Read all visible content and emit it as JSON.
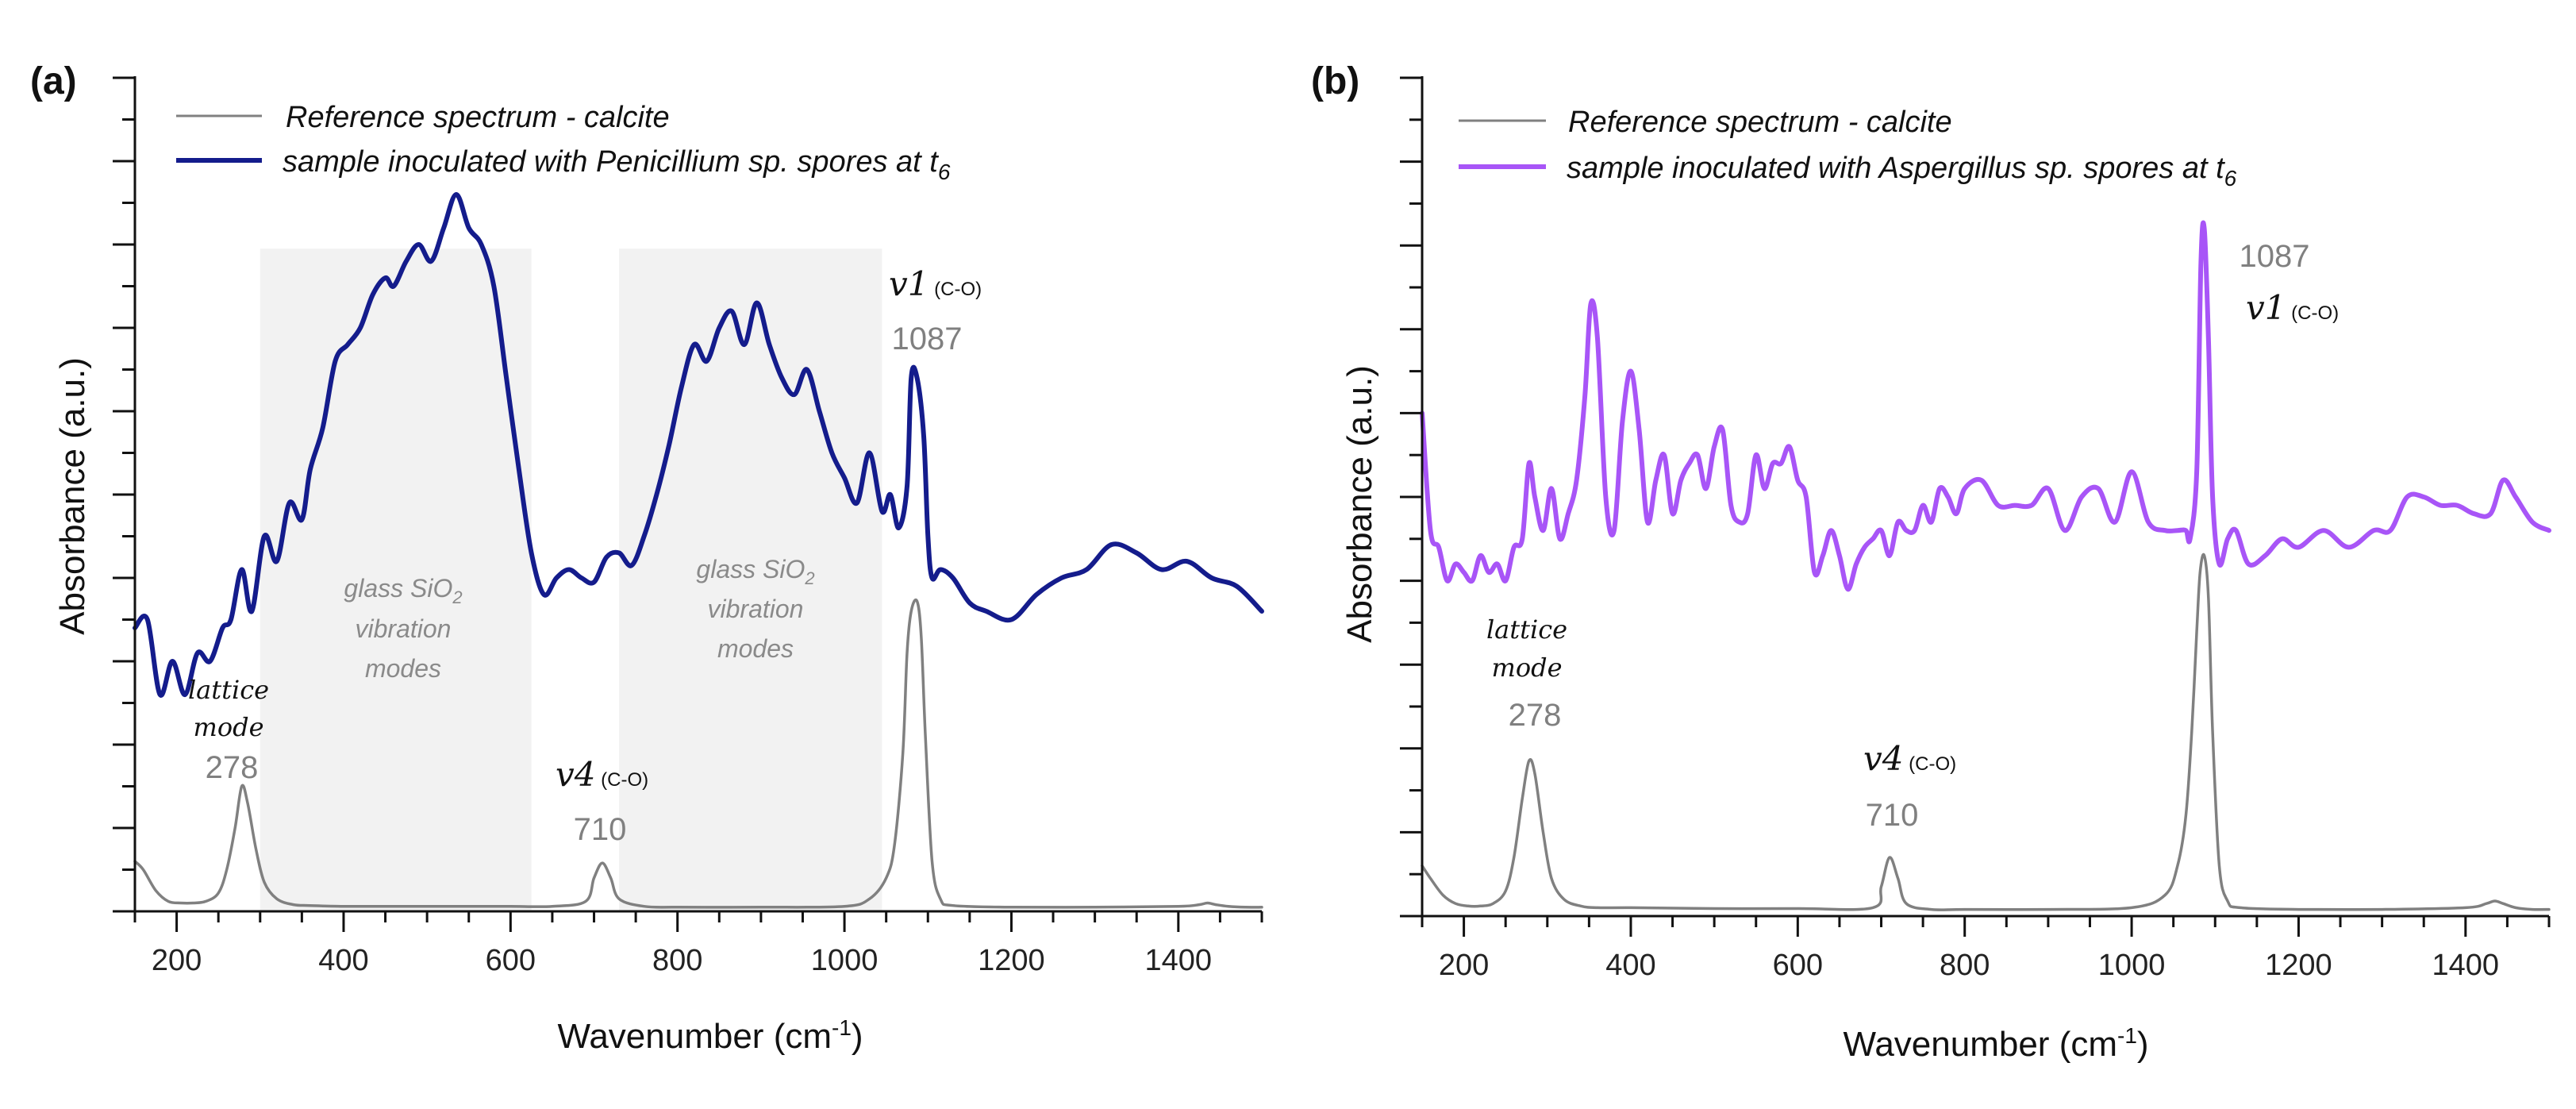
{
  "chart_data": [
    {
      "panel": "(a)",
      "type": "line",
      "xlabel": "Wavenumber (cm",
      "xlabel_sup": "-1",
      "xlabel_close": ")",
      "ylabel": "Absorbance (a.u.)",
      "xlim": [
        150,
        1500
      ],
      "ylim": [
        0,
        10
      ],
      "xticks": [
        200,
        400,
        600,
        800,
        1000,
        1200,
        1400
      ],
      "grid": false,
      "legend": "top-left",
      "series": [
        {
          "name": "Reference spectrum - calcite",
          "color": "#808080",
          "x": [
            150,
            160,
            175,
            190,
            205,
            220,
            235,
            250,
            260,
            270,
            278,
            285,
            295,
            305,
            320,
            340,
            360,
            400,
            450,
            500,
            550,
            600,
            650,
            690,
            700,
            710,
            720,
            730,
            760,
            800,
            900,
            1000,
            1030,
            1050,
            1060,
            1070,
            1075,
            1080,
            1087,
            1092,
            1097,
            1105,
            1115,
            1130,
            1200,
            1300,
            1400,
            1425,
            1435,
            1445,
            1460,
            1480,
            1500
          ],
          "y": [
            0.6,
            0.5,
            0.25,
            0.12,
            0.1,
            0.1,
            0.12,
            0.22,
            0.5,
            1.0,
            1.5,
            1.3,
            0.75,
            0.35,
            0.15,
            0.08,
            0.07,
            0.06,
            0.06,
            0.06,
            0.06,
            0.06,
            0.06,
            0.12,
            0.4,
            0.58,
            0.4,
            0.15,
            0.06,
            0.05,
            0.05,
            0.06,
            0.15,
            0.4,
            0.8,
            1.9,
            3.1,
            3.6,
            3.72,
            3.3,
            2.1,
            0.6,
            0.15,
            0.07,
            0.05,
            0.05,
            0.06,
            0.08,
            0.1,
            0.08,
            0.06,
            0.05,
            0.05
          ]
        },
        {
          "name": "sample inoculated with Penicillium sp. spores at t",
          "name_sub": "6",
          "color": "#141c8c",
          "x": [
            150,
            165,
            180,
            195,
            210,
            225,
            240,
            255,
            265,
            278,
            290,
            305,
            320,
            335,
            350,
            360,
            375,
            390,
            405,
            420,
            435,
            450,
            460,
            475,
            490,
            505,
            520,
            535,
            550,
            565,
            580,
            595,
            610,
            625,
            640,
            655,
            670,
            685,
            700,
            715,
            730,
            745,
            760,
            775,
            790,
            805,
            820,
            835,
            850,
            865,
            880,
            895,
            910,
            925,
            940,
            955,
            970,
            985,
            1000,
            1015,
            1030,
            1045,
            1055,
            1065,
            1075,
            1080,
            1087,
            1095,
            1100,
            1105,
            1115,
            1130,
            1150,
            1170,
            1200,
            1230,
            1260,
            1290,
            1320,
            1350,
            1380,
            1410,
            1440,
            1470,
            1500
          ],
          "y": [
            3.4,
            3.5,
            2.6,
            3.0,
            2.6,
            3.1,
            3.0,
            3.4,
            3.5,
            4.1,
            3.6,
            4.5,
            4.2,
            4.9,
            4.7,
            5.3,
            5.8,
            6.6,
            6.8,
            7.0,
            7.4,
            7.6,
            7.5,
            7.8,
            8.0,
            7.8,
            8.2,
            8.6,
            8.2,
            8.0,
            7.5,
            6.4,
            5.3,
            4.3,
            3.8,
            4.0,
            4.1,
            4.0,
            3.95,
            4.25,
            4.3,
            4.15,
            4.5,
            5.0,
            5.6,
            6.3,
            6.8,
            6.6,
            7.0,
            7.2,
            6.8,
            7.3,
            6.8,
            6.4,
            6.2,
            6.5,
            6.0,
            5.5,
            5.2,
            4.9,
            5.5,
            4.8,
            5.0,
            4.6,
            5.1,
            6.4,
            6.4,
            5.7,
            4.5,
            4.0,
            4.1,
            4.0,
            3.7,
            3.6,
            3.5,
            3.8,
            4.0,
            4.1,
            4.4,
            4.3,
            4.1,
            4.2,
            4.0,
            3.9,
            3.6
          ]
        }
      ],
      "shaded_regions": [
        {
          "x": [
            300,
            625
          ],
          "text": [
            "glass SiO",
            "vibration",
            "modes"
          ],
          "sub": "2"
        },
        {
          "x": [
            730,
            1045
          ],
          "text": [
            "glass SiO",
            "vibration",
            "modes"
          ],
          "sub": "2"
        }
      ],
      "annotations": {
        "lattice_line1": "lattice",
        "lattice_line2": "mode",
        "lattice_value": "278",
        "v4_label": "v4",
        "v4_sub": " (C-O)",
        "v4_value": "710",
        "v1_label": "v1",
        "v1_sub": " (C-O)",
        "v1_value": "1087"
      }
    },
    {
      "panel": "(b)",
      "type": "line",
      "xlabel": "Wavenumber (cm",
      "xlabel_sup": "-1",
      "xlabel_close": ")",
      "ylabel": "Absorbance (a.u.)",
      "xlim": [
        150,
        1500
      ],
      "ylim": [
        0,
        10
      ],
      "xticks": [
        200,
        400,
        600,
        800,
        1000,
        1200,
        1400
      ],
      "grid": false,
      "legend": "top-left",
      "series": [
        {
          "name": "Reference spectrum - calcite",
          "color": "#808080",
          "x": [
            150,
            160,
            175,
            190,
            205,
            220,
            235,
            250,
            260,
            270,
            278,
            285,
            295,
            305,
            320,
            340,
            360,
            400,
            500,
            600,
            690,
            700,
            710,
            720,
            730,
            760,
            800,
            900,
            1000,
            1040,
            1055,
            1065,
            1072,
            1078,
            1082,
            1087,
            1092,
            1097,
            1105,
            1115,
            1130,
            1200,
            1300,
            1400,
            1425,
            1435,
            1445,
            1460,
            1480,
            1500
          ],
          "y": [
            0.6,
            0.45,
            0.25,
            0.15,
            0.12,
            0.12,
            0.15,
            0.3,
            0.7,
            1.4,
            1.85,
            1.7,
            1.0,
            0.45,
            0.2,
            0.12,
            0.1,
            0.1,
            0.09,
            0.09,
            0.1,
            0.35,
            0.7,
            0.45,
            0.15,
            0.08,
            0.08,
            0.08,
            0.1,
            0.25,
            0.6,
            1.2,
            2.2,
            3.4,
            4.1,
            4.3,
            3.8,
            2.2,
            0.6,
            0.18,
            0.1,
            0.08,
            0.08,
            0.1,
            0.15,
            0.18,
            0.15,
            0.1,
            0.08,
            0.08
          ]
        },
        {
          "name": "sample inoculated with Aspergillus sp. spores at t",
          "name_sub": "6",
          "color": "#a855f7",
          "x": [
            150,
            160,
            170,
            180,
            190,
            200,
            210,
            220,
            230,
            240,
            250,
            260,
            270,
            278,
            285,
            295,
            305,
            315,
            325,
            335,
            345,
            352,
            360,
            370,
            380,
            390,
            400,
            410,
            420,
            430,
            440,
            450,
            460,
            470,
            480,
            490,
            500,
            510,
            520,
            530,
            540,
            550,
            560,
            570,
            580,
            590,
            600,
            610,
            620,
            630,
            640,
            650,
            660,
            670,
            680,
            690,
            700,
            710,
            720,
            730,
            740,
            750,
            760,
            770,
            780,
            790,
            800,
            820,
            840,
            860,
            880,
            900,
            920,
            940,
            960,
            980,
            1000,
            1020,
            1040,
            1055,
            1065,
            1070,
            1078,
            1083,
            1087,
            1092,
            1097,
            1105,
            1115,
            1125,
            1140,
            1160,
            1180,
            1200,
            1230,
            1260,
            1290,
            1310,
            1330,
            1350,
            1370,
            1390,
            1410,
            1430,
            1445,
            1460,
            1480,
            1500
          ],
          "y": [
            6.0,
            4.6,
            4.4,
            4.0,
            4.2,
            4.1,
            4.0,
            4.3,
            4.1,
            4.2,
            4.0,
            4.4,
            4.5,
            5.4,
            5.0,
            4.6,
            5.1,
            4.5,
            4.8,
            5.2,
            6.2,
            7.3,
            6.9,
            5.0,
            4.6,
            5.9,
            6.5,
            5.8,
            4.7,
            5.2,
            5.5,
            4.8,
            5.2,
            5.4,
            5.5,
            5.1,
            5.6,
            5.8,
            4.9,
            4.7,
            4.8,
            5.5,
            5.1,
            5.4,
            5.4,
            5.6,
            5.2,
            5.0,
            4.1,
            4.3,
            4.6,
            4.3,
            3.9,
            4.2,
            4.4,
            4.5,
            4.6,
            4.3,
            4.7,
            4.6,
            4.6,
            4.9,
            4.7,
            5.1,
            5.0,
            4.8,
            5.1,
            5.2,
            4.9,
            4.9,
            4.9,
            5.1,
            4.6,
            5.0,
            5.1,
            4.7,
            5.3,
            4.7,
            4.6,
            4.6,
            4.6,
            4.5,
            5.3,
            7.8,
            8.2,
            6.9,
            5.0,
            4.2,
            4.5,
            4.6,
            4.2,
            4.3,
            4.5,
            4.4,
            4.6,
            4.4,
            4.6,
            4.6,
            5.0,
            5.0,
            4.9,
            4.9,
            4.8,
            4.8,
            5.2,
            5.0,
            4.7,
            4.6
          ]
        }
      ],
      "annotations": {
        "lattice_line1": "lattice",
        "lattice_line2": "mode",
        "lattice_value": "278",
        "v4_label": "v4",
        "v4_sub": " (C-O)",
        "v4_value": "710",
        "v1_label": "v1",
        "v1_sub": " (C-O)",
        "v1_value": "1087"
      }
    }
  ]
}
